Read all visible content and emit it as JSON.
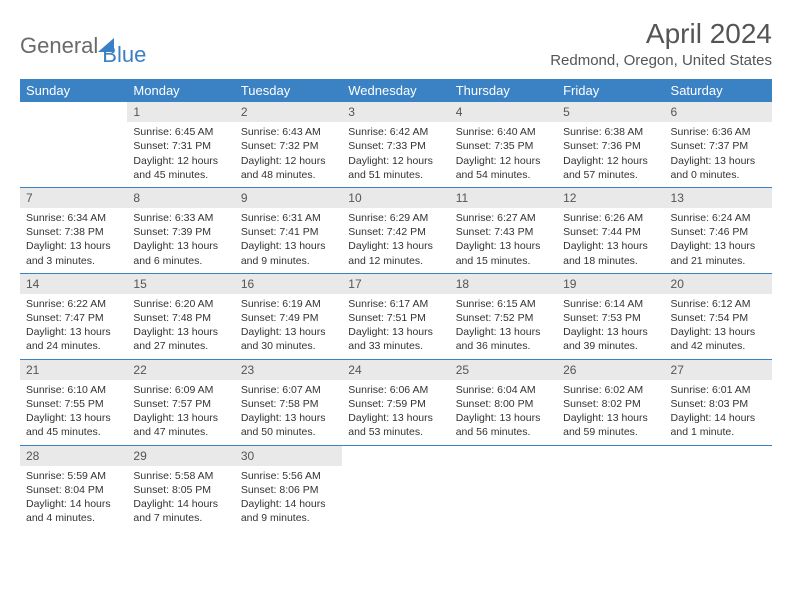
{
  "brand": {
    "part1": "General",
    "part2": "Blue"
  },
  "title": "April 2024",
  "location": "Redmond, Oregon, United States",
  "colors": {
    "header_bg": "#3b82c4",
    "header_text": "#ffffff",
    "daynum_bg": "#e9e9e9",
    "text": "#333333",
    "rule": "#3b82c4",
    "title_color": "#555555"
  },
  "dow": [
    "Sunday",
    "Monday",
    "Tuesday",
    "Wednesday",
    "Thursday",
    "Friday",
    "Saturday"
  ],
  "weeks": [
    [
      null,
      {
        "n": "1",
        "sr": "6:45 AM",
        "ss": "7:31 PM",
        "dl": "12 hours and 45 minutes."
      },
      {
        "n": "2",
        "sr": "6:43 AM",
        "ss": "7:32 PM",
        "dl": "12 hours and 48 minutes."
      },
      {
        "n": "3",
        "sr": "6:42 AM",
        "ss": "7:33 PM",
        "dl": "12 hours and 51 minutes."
      },
      {
        "n": "4",
        "sr": "6:40 AM",
        "ss": "7:35 PM",
        "dl": "12 hours and 54 minutes."
      },
      {
        "n": "5",
        "sr": "6:38 AM",
        "ss": "7:36 PM",
        "dl": "12 hours and 57 minutes."
      },
      {
        "n": "6",
        "sr": "6:36 AM",
        "ss": "7:37 PM",
        "dl": "13 hours and 0 minutes."
      }
    ],
    [
      {
        "n": "7",
        "sr": "6:34 AM",
        "ss": "7:38 PM",
        "dl": "13 hours and 3 minutes."
      },
      {
        "n": "8",
        "sr": "6:33 AM",
        "ss": "7:39 PM",
        "dl": "13 hours and 6 minutes."
      },
      {
        "n": "9",
        "sr": "6:31 AM",
        "ss": "7:41 PM",
        "dl": "13 hours and 9 minutes."
      },
      {
        "n": "10",
        "sr": "6:29 AM",
        "ss": "7:42 PM",
        "dl": "13 hours and 12 minutes."
      },
      {
        "n": "11",
        "sr": "6:27 AM",
        "ss": "7:43 PM",
        "dl": "13 hours and 15 minutes."
      },
      {
        "n": "12",
        "sr": "6:26 AM",
        "ss": "7:44 PM",
        "dl": "13 hours and 18 minutes."
      },
      {
        "n": "13",
        "sr": "6:24 AM",
        "ss": "7:46 PM",
        "dl": "13 hours and 21 minutes."
      }
    ],
    [
      {
        "n": "14",
        "sr": "6:22 AM",
        "ss": "7:47 PM",
        "dl": "13 hours and 24 minutes."
      },
      {
        "n": "15",
        "sr": "6:20 AM",
        "ss": "7:48 PM",
        "dl": "13 hours and 27 minutes."
      },
      {
        "n": "16",
        "sr": "6:19 AM",
        "ss": "7:49 PM",
        "dl": "13 hours and 30 minutes."
      },
      {
        "n": "17",
        "sr": "6:17 AM",
        "ss": "7:51 PM",
        "dl": "13 hours and 33 minutes."
      },
      {
        "n": "18",
        "sr": "6:15 AM",
        "ss": "7:52 PM",
        "dl": "13 hours and 36 minutes."
      },
      {
        "n": "19",
        "sr": "6:14 AM",
        "ss": "7:53 PM",
        "dl": "13 hours and 39 minutes."
      },
      {
        "n": "20",
        "sr": "6:12 AM",
        "ss": "7:54 PM",
        "dl": "13 hours and 42 minutes."
      }
    ],
    [
      {
        "n": "21",
        "sr": "6:10 AM",
        "ss": "7:55 PM",
        "dl": "13 hours and 45 minutes."
      },
      {
        "n": "22",
        "sr": "6:09 AM",
        "ss": "7:57 PM",
        "dl": "13 hours and 47 minutes."
      },
      {
        "n": "23",
        "sr": "6:07 AM",
        "ss": "7:58 PM",
        "dl": "13 hours and 50 minutes."
      },
      {
        "n": "24",
        "sr": "6:06 AM",
        "ss": "7:59 PM",
        "dl": "13 hours and 53 minutes."
      },
      {
        "n": "25",
        "sr": "6:04 AM",
        "ss": "8:00 PM",
        "dl": "13 hours and 56 minutes."
      },
      {
        "n": "26",
        "sr": "6:02 AM",
        "ss": "8:02 PM",
        "dl": "13 hours and 59 minutes."
      },
      {
        "n": "27",
        "sr": "6:01 AM",
        "ss": "8:03 PM",
        "dl": "14 hours and 1 minute."
      }
    ],
    [
      {
        "n": "28",
        "sr": "5:59 AM",
        "ss": "8:04 PM",
        "dl": "14 hours and 4 minutes."
      },
      {
        "n": "29",
        "sr": "5:58 AM",
        "ss": "8:05 PM",
        "dl": "14 hours and 7 minutes."
      },
      {
        "n": "30",
        "sr": "5:56 AM",
        "ss": "8:06 PM",
        "dl": "14 hours and 9 minutes."
      },
      null,
      null,
      null,
      null
    ]
  ],
  "labels": {
    "sunrise": "Sunrise:",
    "sunset": "Sunset:",
    "daylight": "Daylight:"
  }
}
